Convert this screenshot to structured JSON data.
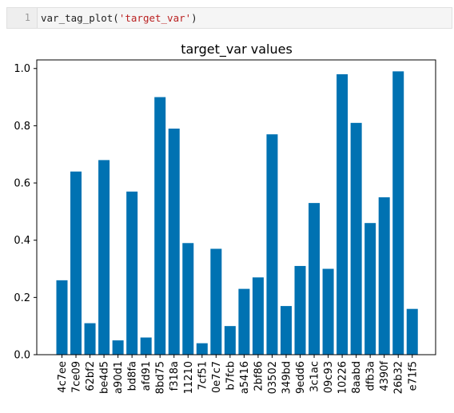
{
  "notebook_cell": {
    "line_number": "1",
    "code_prefix": "var_tag_plot(",
    "code_string": "'target_var'",
    "code_suffix": ")"
  },
  "chart_data": {
    "type": "bar",
    "title": "target_var values",
    "xlabel": "",
    "ylabel": "",
    "categories": [
      "4c7ee",
      "7ce09",
      "62bf2",
      "be4d5",
      "a90d1",
      "bd8fa",
      "afd91",
      "8bd75",
      "f318a",
      "11210",
      "7cf51",
      "0e7c7",
      "b7fcb",
      "a5416",
      "2bf86",
      "03502",
      "349bd",
      "9edd6",
      "3c1ac",
      "09c93",
      "10226",
      "8aabd",
      "dfb3a",
      "4390f",
      "26b32",
      "e71f5"
    ],
    "values": [
      0.26,
      0.64,
      0.11,
      0.68,
      0.05,
      0.57,
      0.06,
      0.9,
      0.79,
      0.39,
      0.04,
      0.37,
      0.1,
      0.23,
      0.27,
      0.77,
      0.17,
      0.31,
      0.53,
      0.3,
      0.98,
      0.81,
      0.46,
      0.55,
      0.99,
      0.16
    ],
    "ylim": [
      0,
      1.03
    ],
    "yticks": [
      0.0,
      0.2,
      0.4,
      0.6,
      0.8,
      1.0
    ],
    "ytick_labels": [
      "0.0",
      "0.2",
      "0.4",
      "0.6",
      "0.8",
      "1.0"
    ],
    "bar_color": "#0072b2",
    "grid": false
  }
}
